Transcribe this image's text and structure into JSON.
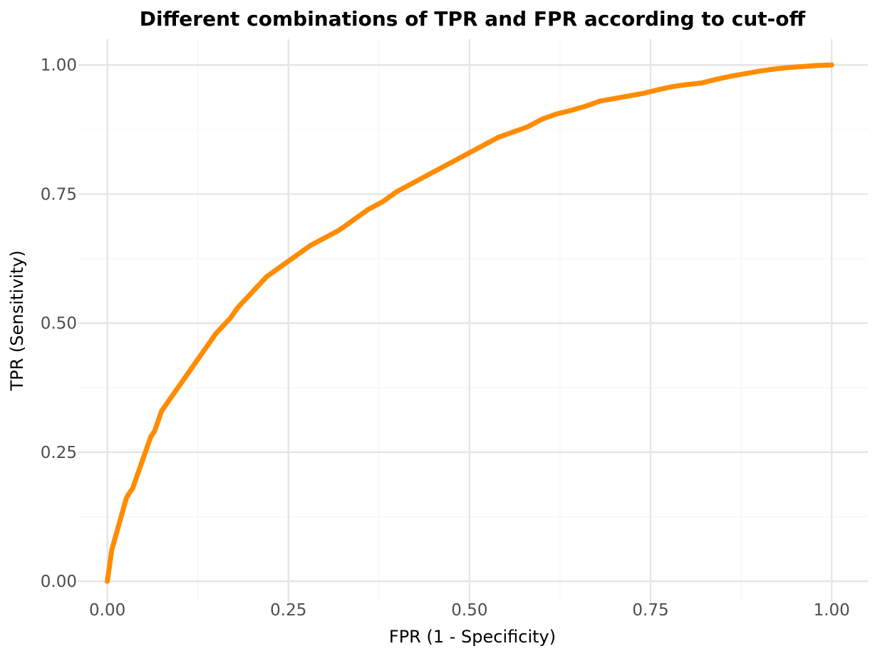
{
  "chart_data": {
    "type": "scatter",
    "title": "Different combinations of TPR and FPR according to cut-off",
    "xlabel": "FPR (1 - Specificity)",
    "ylabel": "TPR (Sensitivity)",
    "xlim": [
      -0.04,
      1.05
    ],
    "ylim": [
      -0.04,
      1.05
    ],
    "x_ticks": [
      0,
      0.25,
      0.5,
      0.75,
      1
    ],
    "x_tick_labels": [
      "0.00",
      "0.25",
      "0.50",
      "0.75",
      "1.00"
    ],
    "y_ticks": [
      0,
      0.25,
      0.5,
      0.75,
      1
    ],
    "y_tick_labels": [
      "0.00",
      "0.25",
      "0.50",
      "0.75",
      "1.00"
    ],
    "grid": true,
    "legend": "none",
    "point_color": "#ff8c00",
    "series": [
      {
        "points": [
          [
            0.0,
            0.0
          ],
          [
            0.002,
            0.02
          ],
          [
            0.004,
            0.04
          ],
          [
            0.006,
            0.06
          ],
          [
            0.01,
            0.08
          ],
          [
            0.014,
            0.1
          ],
          [
            0.018,
            0.12
          ],
          [
            0.022,
            0.14
          ],
          [
            0.026,
            0.16
          ],
          [
            0.03,
            0.17
          ],
          [
            0.035,
            0.18
          ],
          [
            0.04,
            0.2
          ],
          [
            0.045,
            0.22
          ],
          [
            0.05,
            0.24
          ],
          [
            0.055,
            0.26
          ],
          [
            0.06,
            0.28
          ],
          [
            0.065,
            0.29
          ],
          [
            0.07,
            0.31
          ],
          [
            0.075,
            0.33
          ],
          [
            0.08,
            0.34
          ],
          [
            0.09,
            0.36
          ],
          [
            0.1,
            0.38
          ],
          [
            0.11,
            0.4
          ],
          [
            0.12,
            0.42
          ],
          [
            0.13,
            0.44
          ],
          [
            0.14,
            0.46
          ],
          [
            0.15,
            0.48
          ],
          [
            0.16,
            0.495
          ],
          [
            0.17,
            0.51
          ],
          [
            0.18,
            0.53
          ],
          [
            0.19,
            0.545
          ],
          [
            0.2,
            0.56
          ],
          [
            0.21,
            0.575
          ],
          [
            0.22,
            0.59
          ],
          [
            0.24,
            0.61
          ],
          [
            0.26,
            0.63
          ],
          [
            0.28,
            0.65
          ],
          [
            0.3,
            0.665
          ],
          [
            0.32,
            0.68
          ],
          [
            0.34,
            0.7
          ],
          [
            0.36,
            0.72
          ],
          [
            0.38,
            0.735
          ],
          [
            0.4,
            0.755
          ],
          [
            0.42,
            0.77
          ],
          [
            0.44,
            0.785
          ],
          [
            0.46,
            0.8
          ],
          [
            0.48,
            0.815
          ],
          [
            0.5,
            0.83
          ],
          [
            0.52,
            0.845
          ],
          [
            0.54,
            0.86
          ],
          [
            0.56,
            0.87
          ],
          [
            0.58,
            0.88
          ],
          [
            0.6,
            0.895
          ],
          [
            0.62,
            0.905
          ],
          [
            0.64,
            0.912
          ],
          [
            0.66,
            0.92
          ],
          [
            0.68,
            0.93
          ],
          [
            0.7,
            0.935
          ],
          [
            0.72,
            0.94
          ],
          [
            0.74,
            0.945
          ],
          [
            0.76,
            0.952
          ],
          [
            0.78,
            0.958
          ],
          [
            0.8,
            0.962
          ],
          [
            0.82,
            0.965
          ],
          [
            0.84,
            0.972
          ],
          [
            0.86,
            0.978
          ],
          [
            0.88,
            0.983
          ],
          [
            0.9,
            0.988
          ],
          [
            0.92,
            0.992
          ],
          [
            0.94,
            0.995
          ],
          [
            0.96,
            0.997
          ],
          [
            0.98,
            0.999
          ],
          [
            1.0,
            1.0
          ]
        ]
      }
    ]
  }
}
